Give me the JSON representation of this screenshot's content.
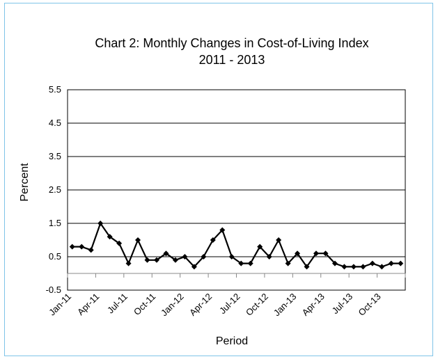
{
  "chart_data": {
    "type": "line",
    "title": [
      "Chart 2: Monthly Changes in Cost-of-Living Index",
      "2011 - 2013"
    ],
    "xlabel": "Period",
    "ylabel": "Percent",
    "ylim": [
      -0.5,
      5.5
    ],
    "yticks": [
      -0.5,
      0.5,
      1.5,
      2.5,
      3.5,
      4.5,
      5.5
    ],
    "grid": true,
    "legend": "none",
    "x_tick_labels": [
      "Jan-11",
      "Apr-11",
      "Jul-11",
      "Oct-11",
      "Jan-12",
      "Apr-12",
      "Jul-12",
      "Oct-12",
      "Jan-13",
      "Apr-13",
      "Jul-13",
      "Oct-13"
    ],
    "categories": [
      "Jan-11",
      "Feb-11",
      "Mar-11",
      "Apr-11",
      "May-11",
      "Jun-11",
      "Jul-11",
      "Aug-11",
      "Sep-11",
      "Oct-11",
      "Nov-11",
      "Dec-11",
      "Jan-12",
      "Feb-12",
      "Mar-12",
      "Apr-12",
      "May-12",
      "Jun-12",
      "Jul-12",
      "Aug-12",
      "Sep-12",
      "Oct-12",
      "Nov-12",
      "Dec-12",
      "Jan-13",
      "Feb-13",
      "Mar-13",
      "Apr-13",
      "May-13",
      "Jun-13",
      "Jul-13",
      "Aug-13",
      "Sep-13",
      "Oct-13",
      "Nov-13",
      "Dec-13"
    ],
    "values": [
      0.8,
      0.8,
      0.7,
      1.5,
      1.1,
      0.9,
      0.3,
      1.0,
      0.4,
      0.4,
      0.6,
      0.4,
      0.5,
      0.2,
      0.5,
      1.0,
      1.3,
      0.5,
      0.3,
      0.3,
      0.8,
      0.5,
      1.0,
      0.3,
      0.6,
      0.2,
      0.6,
      0.6,
      0.3,
      0.2,
      0.2,
      0.2,
      0.3,
      0.2,
      0.3,
      0.3
    ],
    "colors": {
      "line": "#000000",
      "grid": "#000000",
      "frame": "#7fc4e8"
    }
  }
}
